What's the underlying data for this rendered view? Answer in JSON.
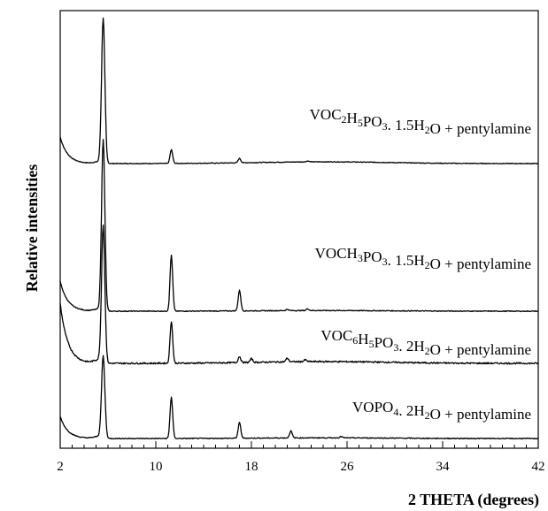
{
  "chart_data": {
    "type": "line",
    "xlabel": "2 THETA (degrees)",
    "ylabel": "Relative intensities",
    "xlim": [
      2,
      42
    ],
    "x_major_ticks": [
      2,
      10,
      18,
      26,
      34,
      42
    ],
    "x_minor_step": 1,
    "y_ticks_labeled": false,
    "grid": false,
    "legend": "none",
    "series": [
      {
        "label_parts": [
          {
            "t": "VOC",
            "s": ""
          },
          {
            "t": "2",
            "s": "sub"
          },
          {
            "t": "H",
            "s": ""
          },
          {
            "t": "5",
            "s": "sub"
          },
          {
            "t": "PO",
            "s": ""
          },
          {
            "t": "3",
            "s": "sub"
          },
          {
            "t": ". 1.5H",
            "s": ""
          },
          {
            "t": "2",
            "s": "sub"
          },
          {
            "t": "O + pentylamine",
            "s": ""
          }
        ],
        "offset": 3.0,
        "peaks": [
          [
            5.6,
            100
          ],
          [
            11.3,
            9.5
          ],
          [
            17.0,
            3.0
          ],
          [
            22.7,
            0.6
          ]
        ],
        "baseline_end": 2.3,
        "background_hump": 1.2
      },
      {
        "label_parts": [
          {
            "t": "VOCH",
            "s": ""
          },
          {
            "t": "3",
            "s": "sub"
          },
          {
            "t": "PO",
            "s": ""
          },
          {
            "t": "3",
            "s": "sub"
          },
          {
            "t": ". 1.5H",
            "s": ""
          },
          {
            "t": "2",
            "s": "sub"
          },
          {
            "t": "O + pentylamine",
            "s": ""
          }
        ],
        "offset": 1.85,
        "peaks": [
          [
            5.6,
            100
          ],
          [
            11.3,
            33
          ],
          [
            17.0,
            12
          ],
          [
            21.0,
            0.8
          ],
          [
            22.7,
            1.0
          ]
        ],
        "baseline_end": 2.2,
        "background_hump": 0.4
      },
      {
        "label_parts": [
          {
            "t": "VOC",
            "s": ""
          },
          {
            "t": "6",
            "s": "sub"
          },
          {
            "t": "H",
            "s": ""
          },
          {
            "t": "5",
            "s": "sub"
          },
          {
            "t": "PO",
            "s": ""
          },
          {
            "t": "3",
            "s": "sub"
          },
          {
            "t": ". 2H",
            "s": ""
          },
          {
            "t": "2",
            "s": "sub"
          },
          {
            "t": "O + pentylamine",
            "s": ""
          }
        ],
        "offset": 1.15,
        "peaks": [
          [
            5.6,
            45
          ],
          [
            11.3,
            14
          ],
          [
            17.0,
            2.0
          ],
          [
            18.0,
            1.2
          ],
          [
            21.0,
            1.2
          ],
          [
            22.5,
            0.6
          ]
        ],
        "baseline_end": 2.5,
        "background_hump": 0.6
      },
      {
        "label_parts": [
          {
            "t": "VOPO",
            "s": ""
          },
          {
            "t": "4",
            "s": "sub"
          },
          {
            "t": ". 2H",
            "s": ""
          },
          {
            "t": "2",
            "s": "sub"
          },
          {
            "t": "O + pentylamine",
            "s": ""
          }
        ],
        "offset": 0.0,
        "peaks": [
          [
            5.6,
            47
          ],
          [
            11.3,
            24
          ],
          [
            17.0,
            9
          ],
          [
            21.3,
            4
          ],
          [
            25.5,
            0.8
          ]
        ],
        "baseline_end": 1.6,
        "background_hump": 0.4
      }
    ]
  }
}
